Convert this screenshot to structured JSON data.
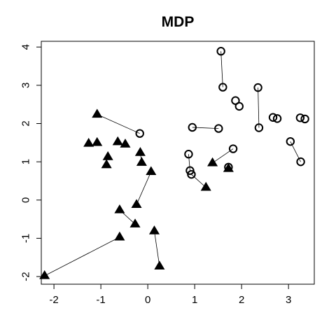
{
  "chart_data": {
    "type": "scatter",
    "title": "MDP",
    "xlabel": "",
    "ylabel": "",
    "xlim": [
      -2.27,
      3.55
    ],
    "ylim": [
      -2.2,
      4.15
    ],
    "x_ticks": [
      -2,
      -1,
      0,
      1,
      2,
      3
    ],
    "y_ticks": [
      -2,
      -1,
      0,
      1,
      2,
      3,
      4
    ],
    "x_tick_labels": [
      "-2",
      "-1",
      "0",
      "1",
      "2",
      "3"
    ],
    "y_tick_labels": [
      "-2",
      "-1",
      "0",
      "1",
      "2",
      "3",
      "4"
    ],
    "grid": false,
    "series": [
      {
        "marker": "circle-open",
        "color": "#000000",
        "points": [
          {
            "x": -0.17,
            "y": 1.74
          },
          {
            "x": 0.87,
            "y": 1.2
          },
          {
            "x": 0.9,
            "y": 0.77
          },
          {
            "x": 0.93,
            "y": 0.67
          },
          {
            "x": 0.95,
            "y": 1.9
          },
          {
            "x": 1.51,
            "y": 1.87
          },
          {
            "x": 1.56,
            "y": 3.89
          },
          {
            "x": 1.6,
            "y": 2.95
          },
          {
            "x": 1.72,
            "y": 0.86
          },
          {
            "x": 1.82,
            "y": 1.34
          },
          {
            "x": 1.87,
            "y": 2.6
          },
          {
            "x": 1.95,
            "y": 2.45
          },
          {
            "x": 2.35,
            "y": 2.94
          },
          {
            "x": 2.37,
            "y": 1.89
          },
          {
            "x": 2.67,
            "y": 2.16
          },
          {
            "x": 2.76,
            "y": 2.13
          },
          {
            "x": 3.04,
            "y": 1.53
          },
          {
            "x": 3.25,
            "y": 2.15
          },
          {
            "x": 3.26,
            "y": 1.0
          },
          {
            "x": 3.35,
            "y": 2.12
          }
        ]
      },
      {
        "marker": "triangle-filled",
        "color": "#000000",
        "points": [
          {
            "x": -2.2,
            "y": -1.98
          },
          {
            "x": -1.26,
            "y": 1.48
          },
          {
            "x": -1.08,
            "y": 1.5
          },
          {
            "x": -1.08,
            "y": 2.24
          },
          {
            "x": -0.85,
            "y": 1.13
          },
          {
            "x": -0.88,
            "y": 0.92
          },
          {
            "x": -0.64,
            "y": 1.52
          },
          {
            "x": -0.6,
            "y": -0.26
          },
          {
            "x": -0.6,
            "y": -0.97
          },
          {
            "x": -0.48,
            "y": 1.46
          },
          {
            "x": -0.27,
            "y": -0.63
          },
          {
            "x": -0.24,
            "y": -0.12
          },
          {
            "x": -0.16,
            "y": 1.24
          },
          {
            "x": -0.13,
            "y": 0.98
          },
          {
            "x": 0.07,
            "y": 0.74
          },
          {
            "x": 0.14,
            "y": -0.81
          },
          {
            "x": 0.25,
            "y": -1.73
          },
          {
            "x": 1.24,
            "y": 0.33
          },
          {
            "x": 1.38,
            "y": 0.97
          },
          {
            "x": 1.72,
            "y": 0.82
          }
        ]
      }
    ],
    "segments": [
      {
        "x1": -1.08,
        "y1": 2.24,
        "x2": -0.17,
        "y2": 1.74
      },
      {
        "x1": 1.56,
        "y1": 3.89,
        "x2": 1.6,
        "y2": 2.95
      },
      {
        "x1": 0.95,
        "y1": 1.9,
        "x2": 1.51,
        "y2": 1.87
      },
      {
        "x1": 2.35,
        "y1": 2.94,
        "x2": 2.37,
        "y2": 1.89
      },
      {
        "x1": 3.04,
        "y1": 1.53,
        "x2": 3.26,
        "y2": 1.0
      },
      {
        "x1": 1.82,
        "y1": 1.34,
        "x2": 1.38,
        "y2": 0.97
      },
      {
        "x1": 0.87,
        "y1": 1.2,
        "x2": 0.9,
        "y2": 0.77
      },
      {
        "x1": 0.93,
        "y1": 0.67,
        "x2": 1.24,
        "y2": 0.33
      },
      {
        "x1": 1.72,
        "y1": 0.86,
        "x2": 1.72,
        "y2": 0.82
      },
      {
        "x1": 0.07,
        "y1": 0.74,
        "x2": -0.24,
        "y2": -0.12
      },
      {
        "x1": -0.6,
        "y1": -0.26,
        "x2": -0.27,
        "y2": -0.63
      },
      {
        "x1": -0.6,
        "y1": -0.97,
        "x2": -2.2,
        "y2": -1.98
      },
      {
        "x1": 0.14,
        "y1": -0.81,
        "x2": 0.25,
        "y2": -1.73
      },
      {
        "x1": -0.16,
        "y1": 1.24,
        "x2": -0.13,
        "y2": 0.98
      }
    ]
  }
}
